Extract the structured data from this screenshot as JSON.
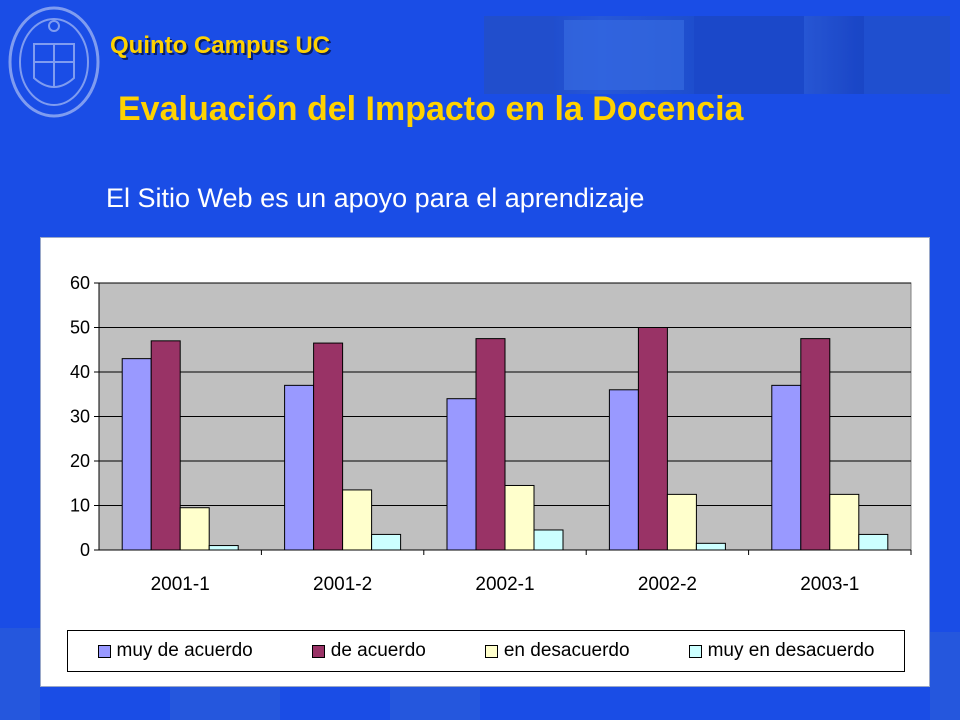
{
  "header": {
    "brand": "Quinto Campus UC",
    "title": "Evaluación del Impacto en la Docencia",
    "subtitle": "El Sitio Web es un apoyo para el aprendizaje"
  },
  "colors": {
    "background": "#1a4de6",
    "heading": "#ffd200",
    "plot_area": "#c0c0c0"
  },
  "chart_data": {
    "type": "bar",
    "categories": [
      "2001-1",
      "2001-2",
      "2002-1",
      "2002-2",
      "2003-1"
    ],
    "series": [
      {
        "name": "muy de acuerdo",
        "color": "#9999ff",
        "values": [
          43,
          37,
          34,
          36,
          37
        ]
      },
      {
        "name": "de acuerdo",
        "color": "#993366",
        "values": [
          47,
          46.5,
          47.5,
          50,
          47.5
        ]
      },
      {
        "name": "en desacuerdo",
        "color": "#ffffcc",
        "values": [
          9.5,
          13.5,
          14.5,
          12.5,
          12.5
        ]
      },
      {
        "name": "muy en desacuerdo",
        "color": "#ccffff",
        "values": [
          1,
          3.5,
          4.5,
          1.5,
          3.5
        ]
      }
    ],
    "ylim": [
      0,
      60
    ],
    "yticks": [
      0,
      10,
      20,
      30,
      40,
      50,
      60
    ],
    "grid": true,
    "legend_position": "bottom"
  }
}
